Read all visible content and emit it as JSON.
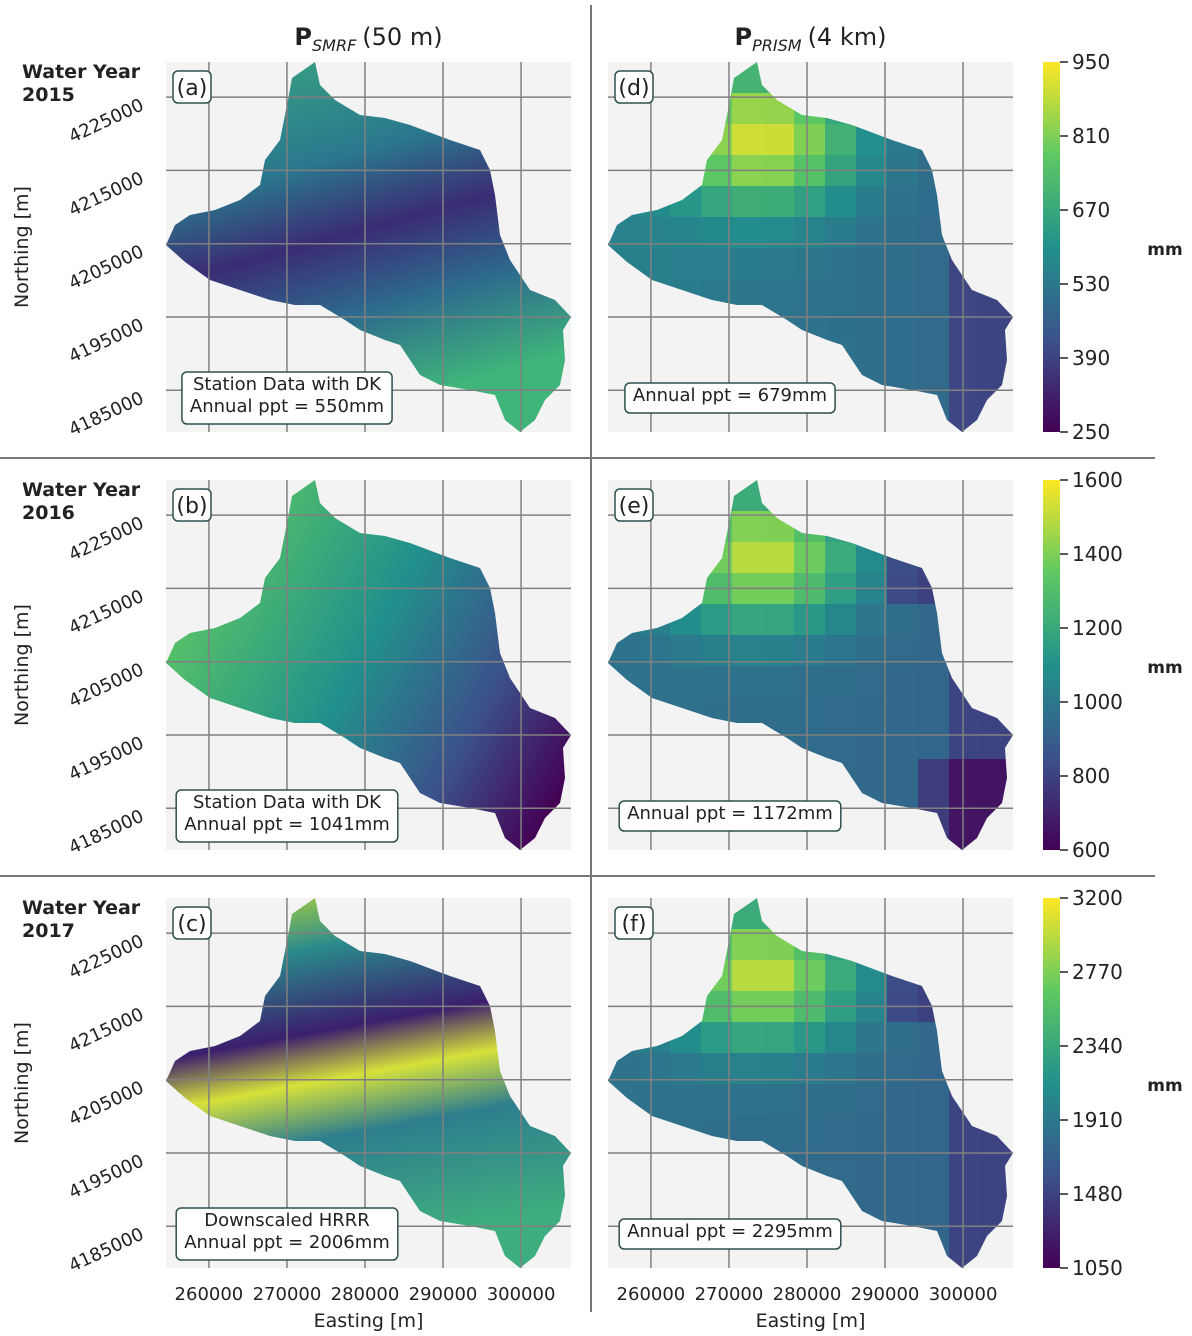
{
  "columns": [
    {
      "symbol": "P",
      "subscript": "SMRF",
      "resolution": "(50 m)"
    },
    {
      "symbol": "P",
      "subscript": "PRISM",
      "resolution": "(4 km)"
    }
  ],
  "axes": {
    "xlabel": "Easting [m]",
    "ylabel": "Northing [m]",
    "xlim": [
      254500,
      306400
    ],
    "ylim": [
      4179300,
      4229800
    ],
    "xticks": [
      260000,
      270000,
      280000,
      290000,
      300000
    ],
    "yticks": [
      4185000,
      4195000,
      4205000,
      4215000,
      4225000
    ]
  },
  "rows": [
    {
      "year_label": [
        "Water Year",
        "2015"
      ],
      "panels": [
        {
          "label": "(a)",
          "annotation": [
            "Station Data with DK",
            "Annual ppt = 550mm"
          ]
        },
        {
          "label": "(d)",
          "annotation": [
            "Annual ppt = 679mm"
          ]
        }
      ],
      "colorbar": {
        "label": "mm",
        "lim": [
          250,
          950
        ],
        "ticks": [
          250,
          390,
          530,
          670,
          810,
          950
        ]
      }
    },
    {
      "year_label": [
        "Water Year",
        "2016"
      ],
      "panels": [
        {
          "label": "(b)",
          "annotation": [
            "Station Data with DK",
            "Annual ppt = 1041mm"
          ]
        },
        {
          "label": "(e)",
          "annotation": [
            "Annual ppt = 1172mm"
          ]
        }
      ],
      "colorbar": {
        "label": "mm",
        "lim": [
          600,
          1600
        ],
        "ticks": [
          600,
          800,
          1000,
          1200,
          1400,
          1600
        ]
      }
    },
    {
      "year_label": [
        "Water Year",
        "2017"
      ],
      "panels": [
        {
          "label": "(c)",
          "annotation": [
            "Downscaled HRRR",
            "Annual ppt = 2006mm"
          ]
        },
        {
          "label": "(f)",
          "annotation": [
            "Annual ppt = 2295mm"
          ]
        }
      ],
      "colorbar": {
        "label": "mm",
        "lim": [
          1050,
          3200
        ],
        "ticks": [
          1050,
          1480,
          1910,
          2340,
          2770,
          3200
        ]
      }
    }
  ]
}
